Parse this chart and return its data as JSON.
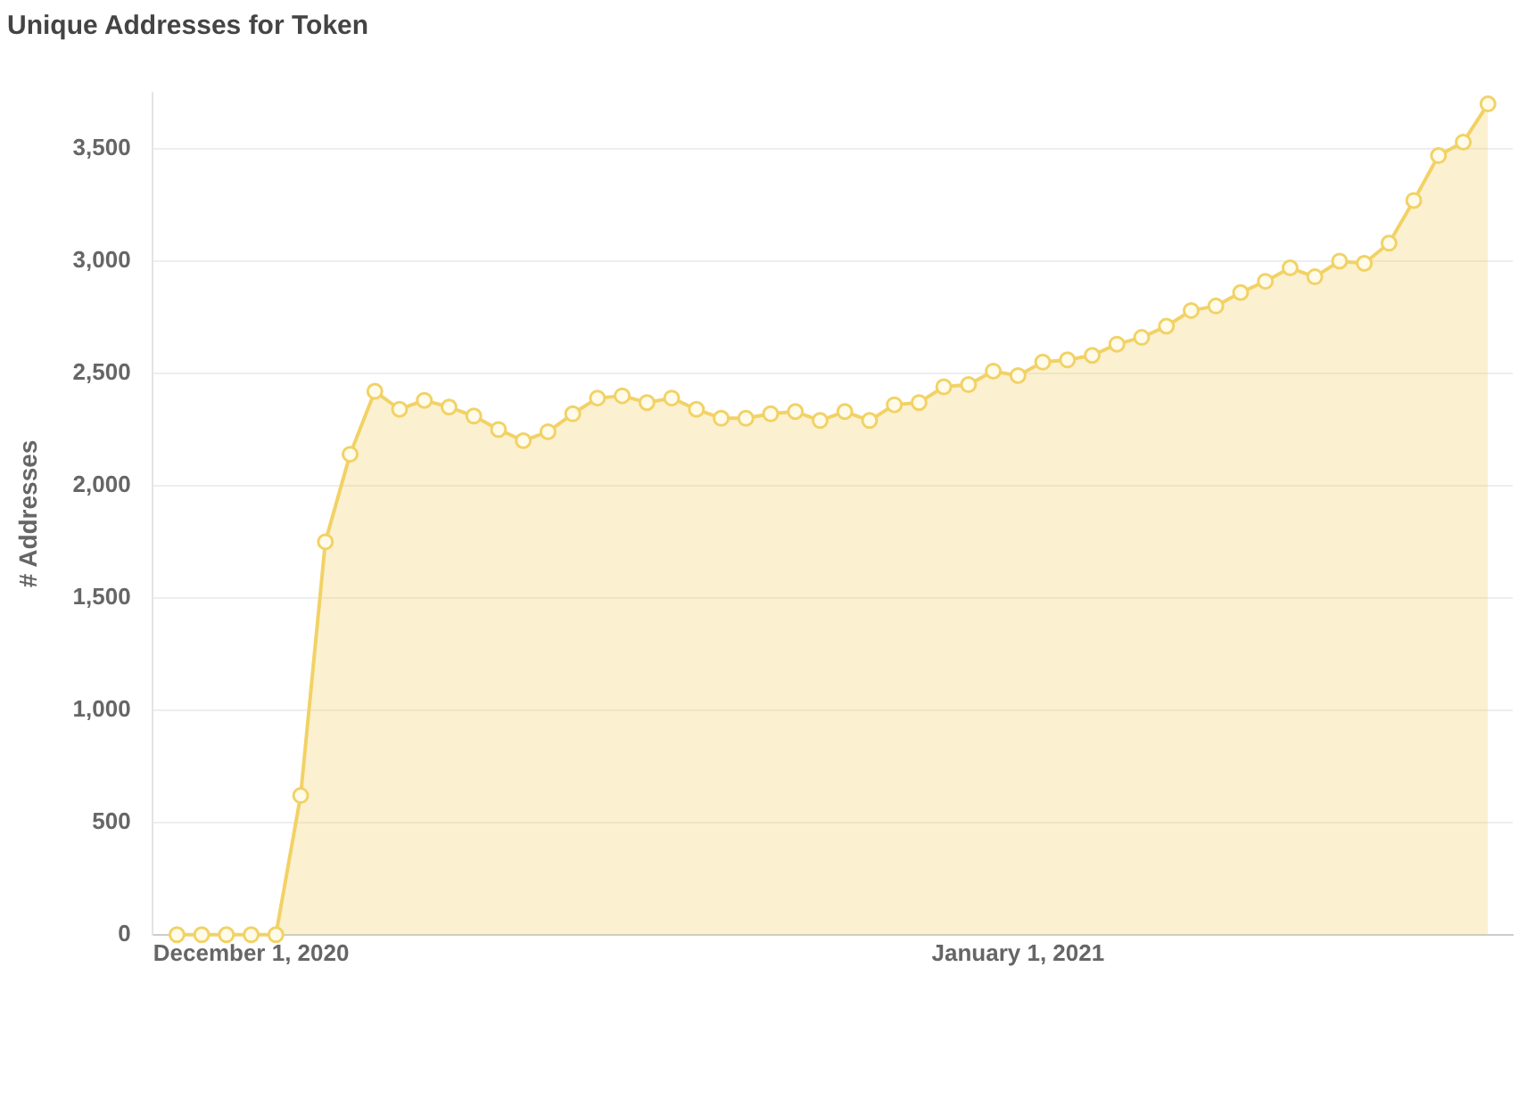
{
  "chart_data": {
    "type": "area",
    "title": "Unique Addresses for Token",
    "ylabel": "# Addresses",
    "x": [
      "2020-11-28",
      "2020-11-29",
      "2020-11-30",
      "2020-12-01",
      "2020-12-02",
      "2020-12-03",
      "2020-12-04",
      "2020-12-05",
      "2020-12-06",
      "2020-12-07",
      "2020-12-08",
      "2020-12-09",
      "2020-12-10",
      "2020-12-11",
      "2020-12-12",
      "2020-12-13",
      "2020-12-14",
      "2020-12-15",
      "2020-12-16",
      "2020-12-17",
      "2020-12-18",
      "2020-12-19",
      "2020-12-20",
      "2020-12-21",
      "2020-12-22",
      "2020-12-23",
      "2020-12-24",
      "2020-12-25",
      "2020-12-26",
      "2020-12-27",
      "2020-12-28",
      "2020-12-29",
      "2020-12-30",
      "2020-12-31",
      "2021-01-01",
      "2021-01-02",
      "2021-01-03",
      "2021-01-04",
      "2021-01-05",
      "2021-01-06",
      "2021-01-07",
      "2021-01-08",
      "2021-01-09",
      "2021-01-10",
      "2021-01-11",
      "2021-01-12",
      "2021-01-13",
      "2021-01-14",
      "2021-01-15",
      "2021-01-16",
      "2021-01-17",
      "2021-01-18",
      "2021-01-19",
      "2021-01-20"
    ],
    "series": [
      {
        "color": "#f2d266",
        "values": [
          0,
          0,
          0,
          0,
          0,
          620,
          1750,
          2140,
          2420,
          2340,
          2380,
          2350,
          2310,
          2250,
          2200,
          2240,
          2320,
          2390,
          2400,
          2370,
          2390,
          2340,
          2300,
          2300,
          2320,
          2330,
          2290,
          2330,
          2290,
          2360,
          2370,
          2440,
          2450,
          2510,
          2490,
          2550,
          2560,
          2580,
          2630,
          2660,
          2710,
          2780,
          2800,
          2860,
          2910,
          2970,
          2930,
          3000,
          2990,
          3080,
          3270,
          3470,
          3530,
          3700
        ]
      }
    ],
    "xlim": [
      "2020-11-27",
      "2021-01-21"
    ],
    "xticks": [
      {
        "value": "2020-12-01",
        "label": "December 1, 2020"
      },
      {
        "value": "2021-01-01",
        "label": "January 1, 2021"
      }
    ],
    "ylim": [
      0,
      3750
    ],
    "yticks": [
      {
        "value": 0,
        "label": "0"
      },
      {
        "value": 500,
        "label": "500"
      },
      {
        "value": 1000,
        "label": "1,000"
      },
      {
        "value": 1500,
        "label": "1,500"
      },
      {
        "value": 2000,
        "label": "2,000"
      },
      {
        "value": 2500,
        "label": "2,500"
      },
      {
        "value": 3000,
        "label": "3,000"
      },
      {
        "value": 3500,
        "label": "3,500"
      }
    ],
    "grid": "y",
    "legend": false,
    "marker": "circle",
    "line_style": "solid"
  }
}
